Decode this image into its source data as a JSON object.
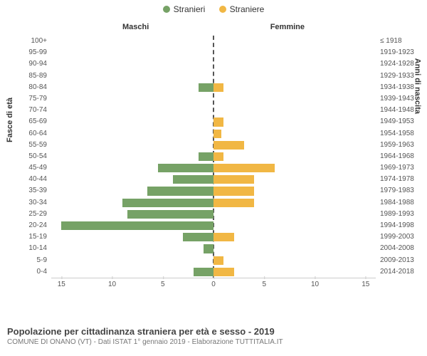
{
  "legend": {
    "male": {
      "label": "Stranieri",
      "color": "#76a266"
    },
    "female": {
      "label": "Straniere",
      "color": "#f1b744"
    }
  },
  "headers": {
    "left": "Maschi",
    "right": "Femmine"
  },
  "axis_titles": {
    "left": "Fasce di età",
    "right": "Anni di nascita"
  },
  "chart": {
    "type": "population-pyramid",
    "background_color": "#ffffff",
    "centerline_color": "#555555",
    "axis_color": "#cccccc",
    "label_fontsize": 10,
    "x_max": 16,
    "x_ticks": [
      15,
      10,
      5,
      0,
      5,
      10,
      15
    ],
    "age_groups": [
      {
        "age": "100+",
        "year": "≤ 1918",
        "male": 0,
        "female": 0
      },
      {
        "age": "95-99",
        "year": "1919-1923",
        "male": 0,
        "female": 0
      },
      {
        "age": "90-94",
        "year": "1924-1928",
        "male": 0,
        "female": 0
      },
      {
        "age": "85-89",
        "year": "1929-1933",
        "male": 0,
        "female": 0
      },
      {
        "age": "80-84",
        "year": "1934-1938",
        "male": 1.5,
        "female": 1
      },
      {
        "age": "75-79",
        "year": "1939-1943",
        "male": 0,
        "female": 0
      },
      {
        "age": "70-74",
        "year": "1944-1948",
        "male": 0,
        "female": 0
      },
      {
        "age": "65-69",
        "year": "1949-1953",
        "male": 0,
        "female": 1
      },
      {
        "age": "60-64",
        "year": "1954-1958",
        "male": 0,
        "female": 0.8
      },
      {
        "age": "55-59",
        "year": "1959-1963",
        "male": 0,
        "female": 3
      },
      {
        "age": "50-54",
        "year": "1964-1968",
        "male": 1.5,
        "female": 1
      },
      {
        "age": "45-49",
        "year": "1969-1973",
        "male": 5.5,
        "female": 6
      },
      {
        "age": "40-44",
        "year": "1974-1978",
        "male": 4,
        "female": 4
      },
      {
        "age": "35-39",
        "year": "1979-1983",
        "male": 6.5,
        "female": 4
      },
      {
        "age": "30-34",
        "year": "1984-1988",
        "male": 9,
        "female": 4
      },
      {
        "age": "25-29",
        "year": "1989-1993",
        "male": 8.5,
        "female": 0
      },
      {
        "age": "20-24",
        "year": "1994-1998",
        "male": 15,
        "female": 0
      },
      {
        "age": "15-19",
        "year": "1999-2003",
        "male": 3,
        "female": 2
      },
      {
        "age": "10-14",
        "year": "2004-2008",
        "male": 1,
        "female": 0
      },
      {
        "age": "5-9",
        "year": "2009-2013",
        "male": 0,
        "female": 1
      },
      {
        "age": "0-4",
        "year": "2014-2018",
        "male": 2,
        "female": 2
      }
    ]
  },
  "footer": {
    "title": "Popolazione per cittadinanza straniera per età e sesso - 2019",
    "subtitle": "COMUNE DI ONANO (VT) - Dati ISTAT 1° gennaio 2019 - Elaborazione TUTTITALIA.IT"
  }
}
